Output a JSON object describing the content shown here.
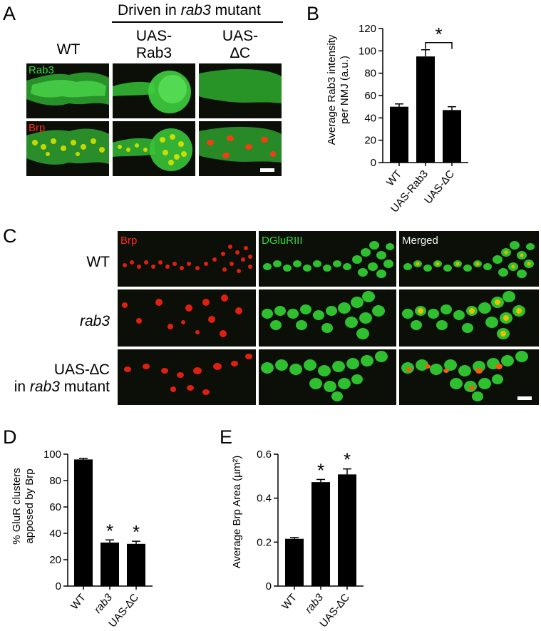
{
  "panels": {
    "A": {
      "letter": "A",
      "header_driven": "Driven in",
      "header_rab3": "rab3",
      "header_mutant": "mutant",
      "columns": [
        {
          "line1": "WT",
          "line2": ""
        },
        {
          "line1": "UAS-",
          "line2": "Rab3"
        },
        {
          "line1": "UAS-",
          "line2": "∆C"
        }
      ],
      "rows": [
        {
          "label": "Rab3",
          "color": "#35d93a"
        },
        {
          "label": "Brp",
          "color": "#ff2a1a"
        }
      ]
    },
    "C": {
      "letter": "C",
      "columns": [
        "Brp",
        "DGluRIII",
        "Merged"
      ],
      "rows": [
        {
          "line1": "WT",
          "italic1": false,
          "line2": "",
          "line2_prefix": "",
          "line2_suffix": ""
        },
        {
          "line1": "rab3",
          "italic1": true,
          "line2": "",
          "line2_prefix": "",
          "line2_suffix": ""
        },
        {
          "line1": "UAS-∆C",
          "italic1": false,
          "line2": "rab3",
          "line2_prefix": "in ",
          "line2_suffix": " mutant"
        }
      ]
    }
  },
  "chart_data": [
    {
      "panel": "B",
      "type": "bar",
      "categories": [
        "WT",
        "UAS-Rab3",
        "UAS-∆C"
      ],
      "values": [
        50,
        95,
        47
      ],
      "errors": [
        2.5,
        6,
        3
      ],
      "ylabel_line1": "Average Rab3 intensity",
      "ylabel_line2": "per NMJ (a.u.)",
      "ylim": [
        0,
        120
      ],
      "yticks": [
        "0",
        "20",
        "40",
        "60",
        "80",
        "100",
        "120"
      ],
      "significance": {
        "between": [
          "UAS-Rab3",
          "UAS-∆C"
        ],
        "marker": "*"
      },
      "bar_color": "#000000"
    },
    {
      "panel": "D",
      "type": "bar",
      "categories": [
        "WT",
        "rab3",
        "UAS-∆C"
      ],
      "values": [
        96,
        33,
        32
      ],
      "errors": [
        0.8,
        2,
        2
      ],
      "ylabel_line1": "% GluR clusters",
      "ylabel_line2": "apposed by Brp",
      "ylim": [
        0,
        100
      ],
      "yticks": [
        "0",
        "20",
        "40",
        "60",
        "80",
        "100"
      ],
      "stars": [
        "",
        "*",
        "*"
      ],
      "bar_color": "#000000"
    },
    {
      "panel": "E",
      "type": "bar",
      "categories": [
        "WT",
        "rab3",
        "UAS-∆C"
      ],
      "values": [
        0.215,
        0.473,
        0.508
      ],
      "errors": [
        0.006,
        0.012,
        0.025
      ],
      "ylabel_line1": "Average Brp Area (µm²)",
      "ylim": [
        0,
        0.6
      ],
      "yticks": [
        "0",
        "0.2",
        "0.4",
        "0.6"
      ],
      "stars": [
        "",
        "*",
        "*"
      ],
      "bar_color": "#000000"
    }
  ]
}
